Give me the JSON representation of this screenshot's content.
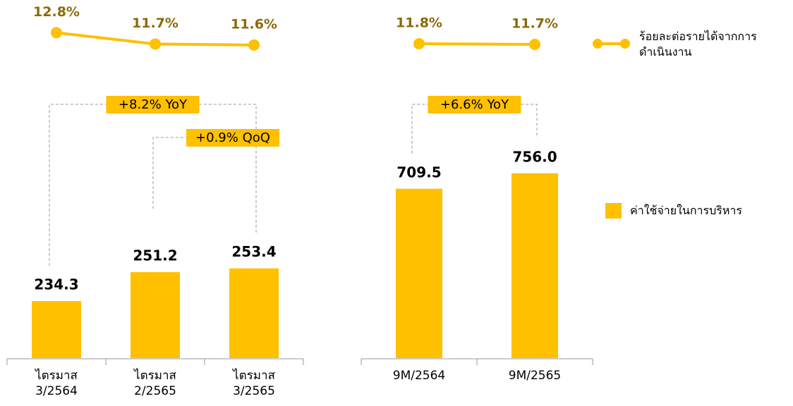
{
  "chart_data": [
    {
      "type": "bar_line",
      "categories": [
        "ไตรมาส 3/2564",
        "ไตรมาส 2/2565",
        "ไตรมาส 3/2565"
      ],
      "series": [
        {
          "type": "bar",
          "color": "#ffc000",
          "values": [
            234.3,
            251.2,
            253.4
          ],
          "value_labels": [
            "234.3",
            "251.2",
            "253.4"
          ]
        },
        {
          "type": "line",
          "axis": "y2",
          "color": "#ffc000",
          "values": [
            12.8,
            11.7,
            11.6
          ],
          "value_labels": [
            "12.8%",
            "11.7%",
            "11.6%"
          ]
        }
      ],
      "ylim": [
        201,
        369
      ],
      "y2lim": [
        10.5,
        14.6
      ],
      "annotations": [
        {
          "text": "+8.2% YoY",
          "from": 0,
          "to": 2
        },
        {
          "text": "+0.9% QoQ",
          "from": 1,
          "to": 2
        }
      ]
    },
    {
      "type": "bar_line",
      "categories": [
        "9M/2564",
        "9M/2565"
      ],
      "series": [
        {
          "type": "bar",
          "color": "#ffc000",
          "values": [
            709.5,
            756.0
          ],
          "value_labels": [
            "709.5",
            "756.0"
          ]
        },
        {
          "type": "line",
          "axis": "y2",
          "color": "#ffc000",
          "values": [
            11.8,
            11.7
          ],
          "value_labels": [
            "11.8%",
            "11.7%"
          ]
        }
      ],
      "ylim": [
        202,
        1064
      ],
      "y2lim": [
        10,
        16
      ],
      "annotations": [
        {
          "text": "+6.6% YoY",
          "from": 0,
          "to": 1
        }
      ]
    }
  ],
  "legend": [
    {
      "name": "ร้อยละต่อรายได้จากการดำเนินงาน",
      "marker": "line",
      "color": "#ffc000"
    },
    {
      "name": "ค่าใช้จ่ายในการบริหาร",
      "marker": "bar",
      "color": "#ffc000"
    }
  ]
}
